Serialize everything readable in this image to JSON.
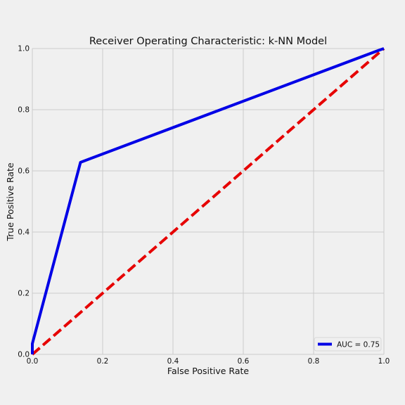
{
  "colors": {
    "background": "#f0f0f0",
    "grid": "#cbcbcb",
    "roc_line": "#0000e6",
    "reference_line": "#e60000"
  },
  "chart_data": {
    "type": "line",
    "title": "Receiver Operating Characteristic: k-NN Model",
    "xlabel": "False Positive Rate",
    "ylabel": "True Positive Rate",
    "xlim": [
      0,
      1
    ],
    "ylim": [
      0,
      1
    ],
    "grid": true,
    "legend_position": "bottom-right",
    "x_ticks": [
      "0.0",
      "0.2",
      "0.4",
      "0.6",
      "0.8",
      "1.0"
    ],
    "y_ticks": [
      "0.0",
      "0.2",
      "0.4",
      "0.6",
      "0.8",
      "1.0"
    ],
    "series": [
      {
        "name": "AUC = 0.75",
        "style": "solid",
        "color": "#0000e6",
        "x": [
          0.0,
          0.0,
          0.137,
          0.985,
          1.0
        ],
        "y": [
          0.0,
          0.035,
          0.628,
          0.994,
          1.0
        ]
      },
      {
        "style": "dashed",
        "color": "#e60000",
        "x": [
          0.0,
          1.0
        ],
        "y": [
          0.0,
          1.0
        ]
      }
    ]
  }
}
